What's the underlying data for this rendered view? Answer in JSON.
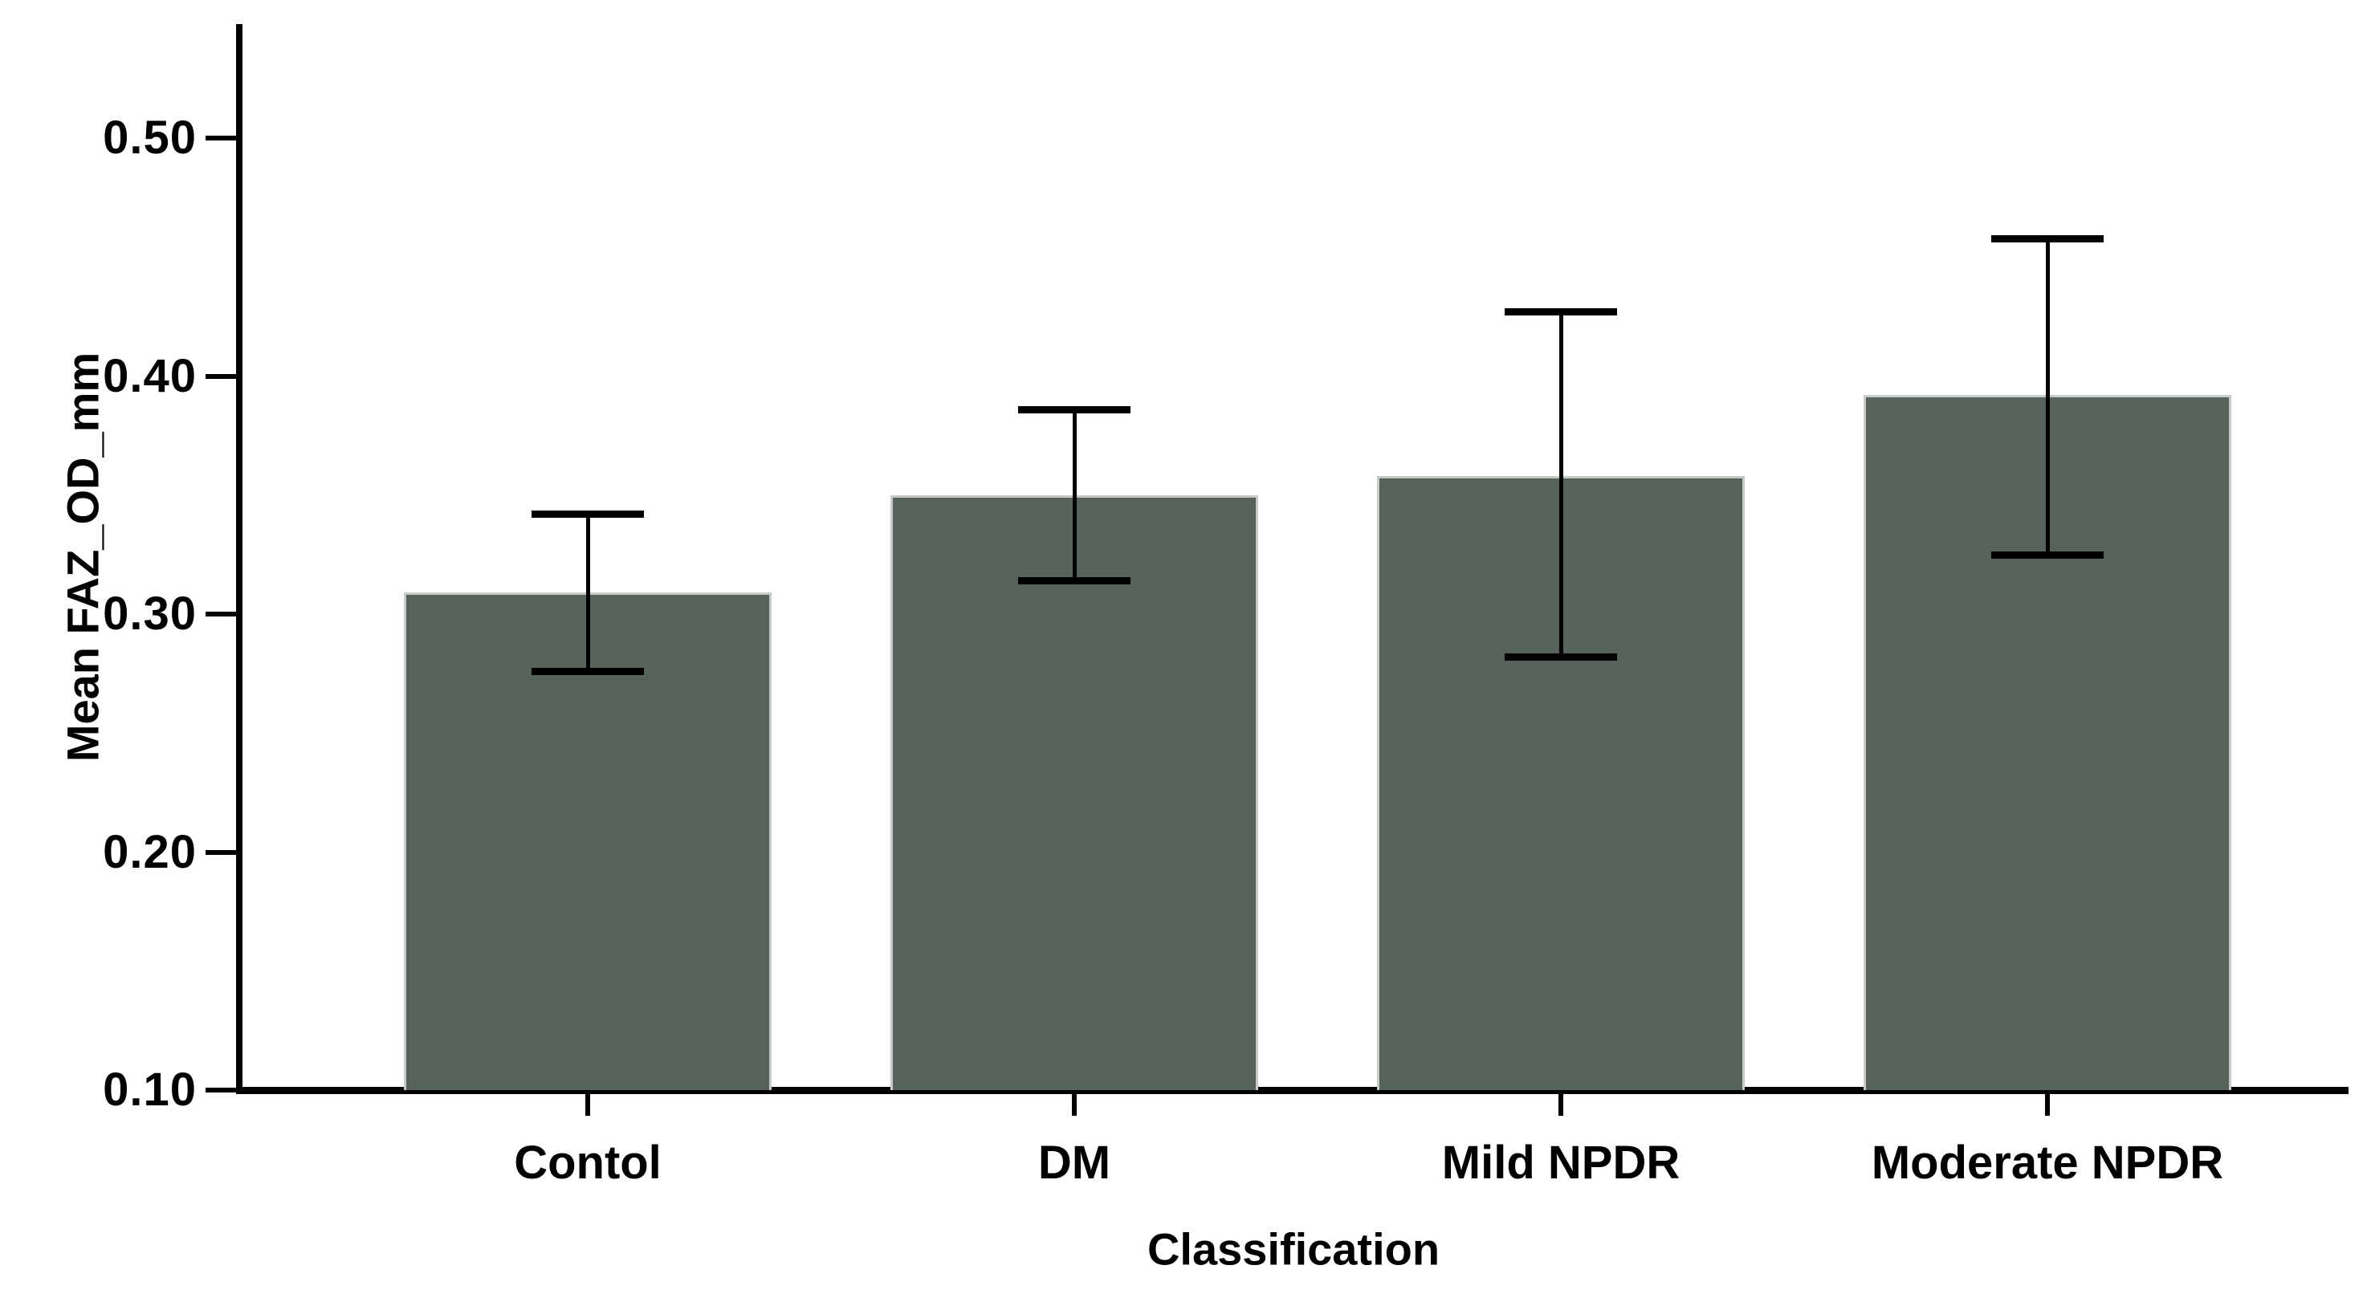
{
  "chart_data": {
    "type": "bar",
    "title": "",
    "categories": [
      "Contol",
      "DM",
      "Mild NPDR",
      "Moderate NPDR"
    ],
    "series": [
      {
        "name": "Mean FAZ_OD_mm",
        "values": [
          0.309,
          0.35,
          0.358,
          0.392
        ],
        "error_low": [
          0.276,
          0.314,
          0.282,
          0.325
        ],
        "error_high": [
          0.342,
          0.386,
          0.427,
          0.458
        ]
      }
    ],
    "xlabel": "Classification",
    "ylabel": "Mean FAZ_OD_mm",
    "yticks": [
      0.5,
      0.4,
      0.3,
      0.2,
      0.1
    ],
    "ytick_labels": [
      "0.50",
      "0.40",
      "0.30",
      "0.20",
      "0.10"
    ],
    "ylim": [
      0.1,
      0.548
    ],
    "grid": false,
    "legend_position": "none",
    "error_bars": true,
    "colors": {
      "bar_fill": "#57625B",
      "bar_border": "#C7CCC7",
      "error_bar": "#000000",
      "axis": "#000000",
      "text": "#000000",
      "background": "#FFFFFF"
    }
  }
}
